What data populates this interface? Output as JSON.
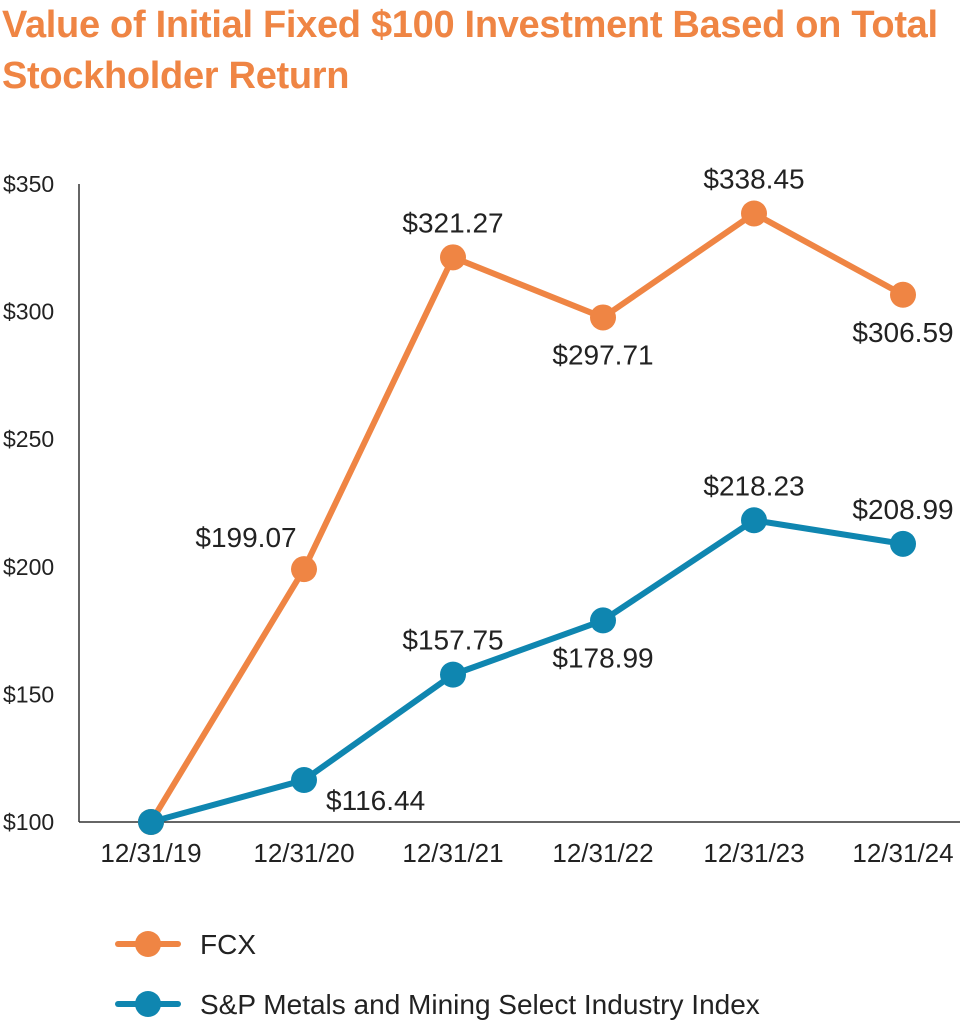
{
  "chart_data": {
    "type": "line",
    "title": "Value of Initial Fixed $100 Investment Based on Total Stockholder Return",
    "xlabel": "",
    "ylabel": "",
    "categories": [
      "12/31/19",
      "12/31/20",
      "12/31/21",
      "12/31/22",
      "12/31/23",
      "12/31/24"
    ],
    "ylim": [
      100,
      350
    ],
    "yticks": [
      100,
      150,
      200,
      250,
      300,
      350
    ],
    "ytick_labels": [
      "$100",
      "$150",
      "$200",
      "$250",
      "$300",
      "$350"
    ],
    "grid": false,
    "legend_position": "bottom",
    "series": [
      {
        "name": "FCX",
        "color": "#EF8544",
        "values": [
          100,
          199.07,
          321.27,
          297.71,
          338.45,
          306.59
        ],
        "labels": [
          "",
          "$199.07",
          "$321.27",
          "$297.71",
          "$338.45",
          "$306.59"
        ],
        "label_sides": [
          "none",
          "above",
          "above",
          "below",
          "above",
          "below"
        ]
      },
      {
        "name": "S&P Metals and Mining Select Industry Index",
        "color": "#0F86B0",
        "values": [
          100,
          116.44,
          157.75,
          178.99,
          218.23,
          208.99
        ],
        "labels": [
          "",
          "$116.44",
          "$157.75",
          "$178.99",
          "$218.23",
          "$208.99"
        ],
        "label_sides": [
          "none",
          "below-right",
          "above",
          "below",
          "above",
          "above"
        ]
      }
    ]
  },
  "colors": {
    "title": "#EF8544",
    "axis": "#333333"
  }
}
